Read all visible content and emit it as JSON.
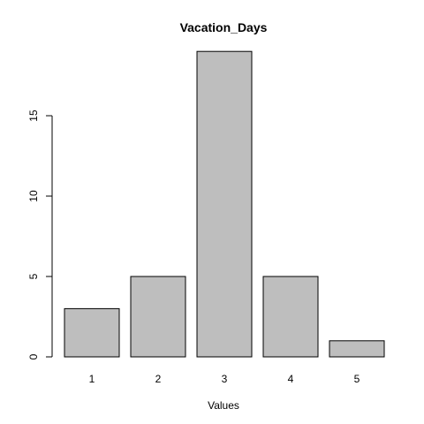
{
  "chart_data": {
    "type": "bar",
    "title": "Vacation_Days",
    "xlabel": "Values",
    "ylabel": "",
    "categories": [
      "1",
      "2",
      "3",
      "4",
      "5"
    ],
    "values": [
      3,
      5,
      19,
      5,
      1
    ],
    "ylim": [
      0,
      19
    ],
    "yticks": [
      0,
      5,
      10,
      15
    ],
    "grid": false,
    "legend": "none",
    "colors": {
      "bar_fill": "#bebebe",
      "bar_stroke": "#000000",
      "axis": "#000000",
      "text": "#000000",
      "background": "#ffffff"
    }
  }
}
